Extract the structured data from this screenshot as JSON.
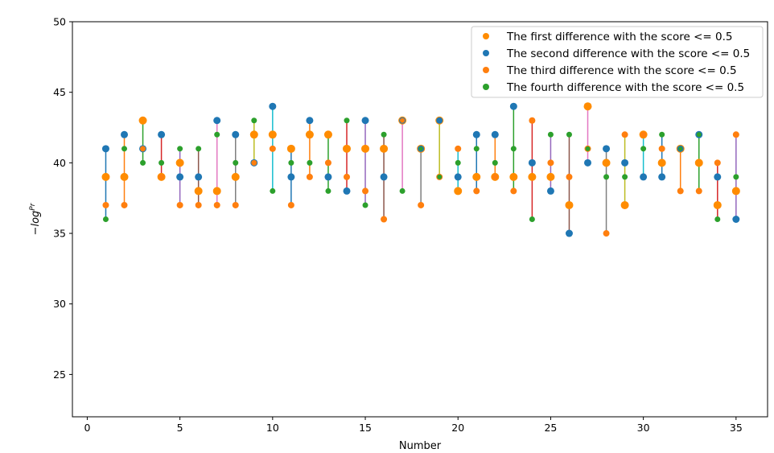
{
  "chart_data": {
    "type": "scatter",
    "title": "",
    "xlabel": "Number",
    "ylabel_base": "−log",
    "ylabel_sup": "Pr",
    "xlim": [
      -0.8,
      36.7
    ],
    "ylim": [
      22,
      50
    ],
    "xticks": [
      0,
      5,
      10,
      15,
      20,
      25,
      30,
      35
    ],
    "yticks": [
      25,
      30,
      35,
      40,
      45,
      50
    ],
    "legend_position": "top-right",
    "grid": false,
    "series": [
      {
        "name": "The first difference with the score <= 0.5",
        "color": "#ff8c00"
      },
      {
        "name": "The second difference with the score <= 0.5",
        "color": "#1f77b4"
      },
      {
        "name": "The third difference with the score <= 0.5",
        "color": "#ff7f0e"
      },
      {
        "name": "The fourth difference with the score <= 0.5",
        "color": "#2ca02c"
      }
    ],
    "line_colors": [
      "#1f77b4",
      "#ff7f0e",
      "#2ca02c",
      "#d62728",
      "#9467bd",
      "#8c564b",
      "#e377c2",
      "#7f7f7f",
      "#bcbd22",
      "#17becf"
    ],
    "groups": [
      {
        "x": 1,
        "values": [
          39,
          41,
          37,
          36
        ]
      },
      {
        "x": 2,
        "values": [
          39,
          42,
          37,
          41
        ]
      },
      {
        "x": 3,
        "values": [
          43,
          41,
          41,
          40
        ]
      },
      {
        "x": 4,
        "values": [
          39,
          42,
          39,
          40
        ]
      },
      {
        "x": 5,
        "values": [
          40,
          39,
          37,
          41
        ]
      },
      {
        "x": 6,
        "values": [
          38,
          39,
          37,
          41
        ]
      },
      {
        "x": 7,
        "values": [
          38,
          43,
          37,
          42
        ]
      },
      {
        "x": 8,
        "values": [
          39,
          42,
          37,
          40
        ]
      },
      {
        "x": 9,
        "values": [
          42,
          40,
          40,
          43
        ]
      },
      {
        "x": 10,
        "values": [
          42,
          44,
          41,
          38
        ]
      },
      {
        "x": 11,
        "values": [
          41,
          39,
          37,
          40
        ]
      },
      {
        "x": 12,
        "values": [
          42,
          43,
          39,
          40
        ]
      },
      {
        "x": 13,
        "values": [
          42,
          39,
          40,
          38
        ]
      },
      {
        "x": 14,
        "values": [
          41,
          38,
          39,
          43
        ]
      },
      {
        "x": 15,
        "values": [
          41,
          43,
          38,
          37
        ]
      },
      {
        "x": 16,
        "values": [
          41,
          39,
          36,
          42
        ]
      },
      {
        "x": 17,
        "values": [
          43,
          43,
          43,
          38
        ]
      },
      {
        "x": 18,
        "values": [
          41,
          41,
          37,
          41
        ]
      },
      {
        "x": 19,
        "values": [
          43,
          43,
          39,
          39
        ]
      },
      {
        "x": 20,
        "values": [
          38,
          39,
          41,
          40
        ]
      },
      {
        "x": 21,
        "values": [
          39,
          42,
          38,
          41
        ]
      },
      {
        "x": 22,
        "values": [
          39,
          42,
          39,
          40
        ]
      },
      {
        "x": 23,
        "values": [
          39,
          44,
          38,
          41
        ]
      },
      {
        "x": 24,
        "values": [
          39,
          40,
          43,
          36
        ]
      },
      {
        "x": 25,
        "values": [
          39,
          38,
          40,
          42
        ]
      },
      {
        "x": 26,
        "values": [
          37,
          35,
          39,
          42
        ]
      },
      {
        "x": 27,
        "values": [
          44,
          40,
          41,
          41
        ]
      },
      {
        "x": 28,
        "values": [
          40,
          41,
          35,
          39
        ]
      },
      {
        "x": 29,
        "values": [
          37,
          40,
          42,
          39
        ]
      },
      {
        "x": 30,
        "values": [
          42,
          39,
          42,
          41
        ]
      },
      {
        "x": 31,
        "values": [
          40,
          39,
          41,
          42
        ]
      },
      {
        "x": 32,
        "values": [
          41,
          41,
          38,
          41
        ]
      },
      {
        "x": 33,
        "values": [
          40,
          42,
          38,
          42
        ]
      },
      {
        "x": 34,
        "values": [
          37,
          39,
          40,
          36
        ]
      },
      {
        "x": 35,
        "values": [
          38,
          36,
          42,
          39
        ]
      }
    ]
  }
}
